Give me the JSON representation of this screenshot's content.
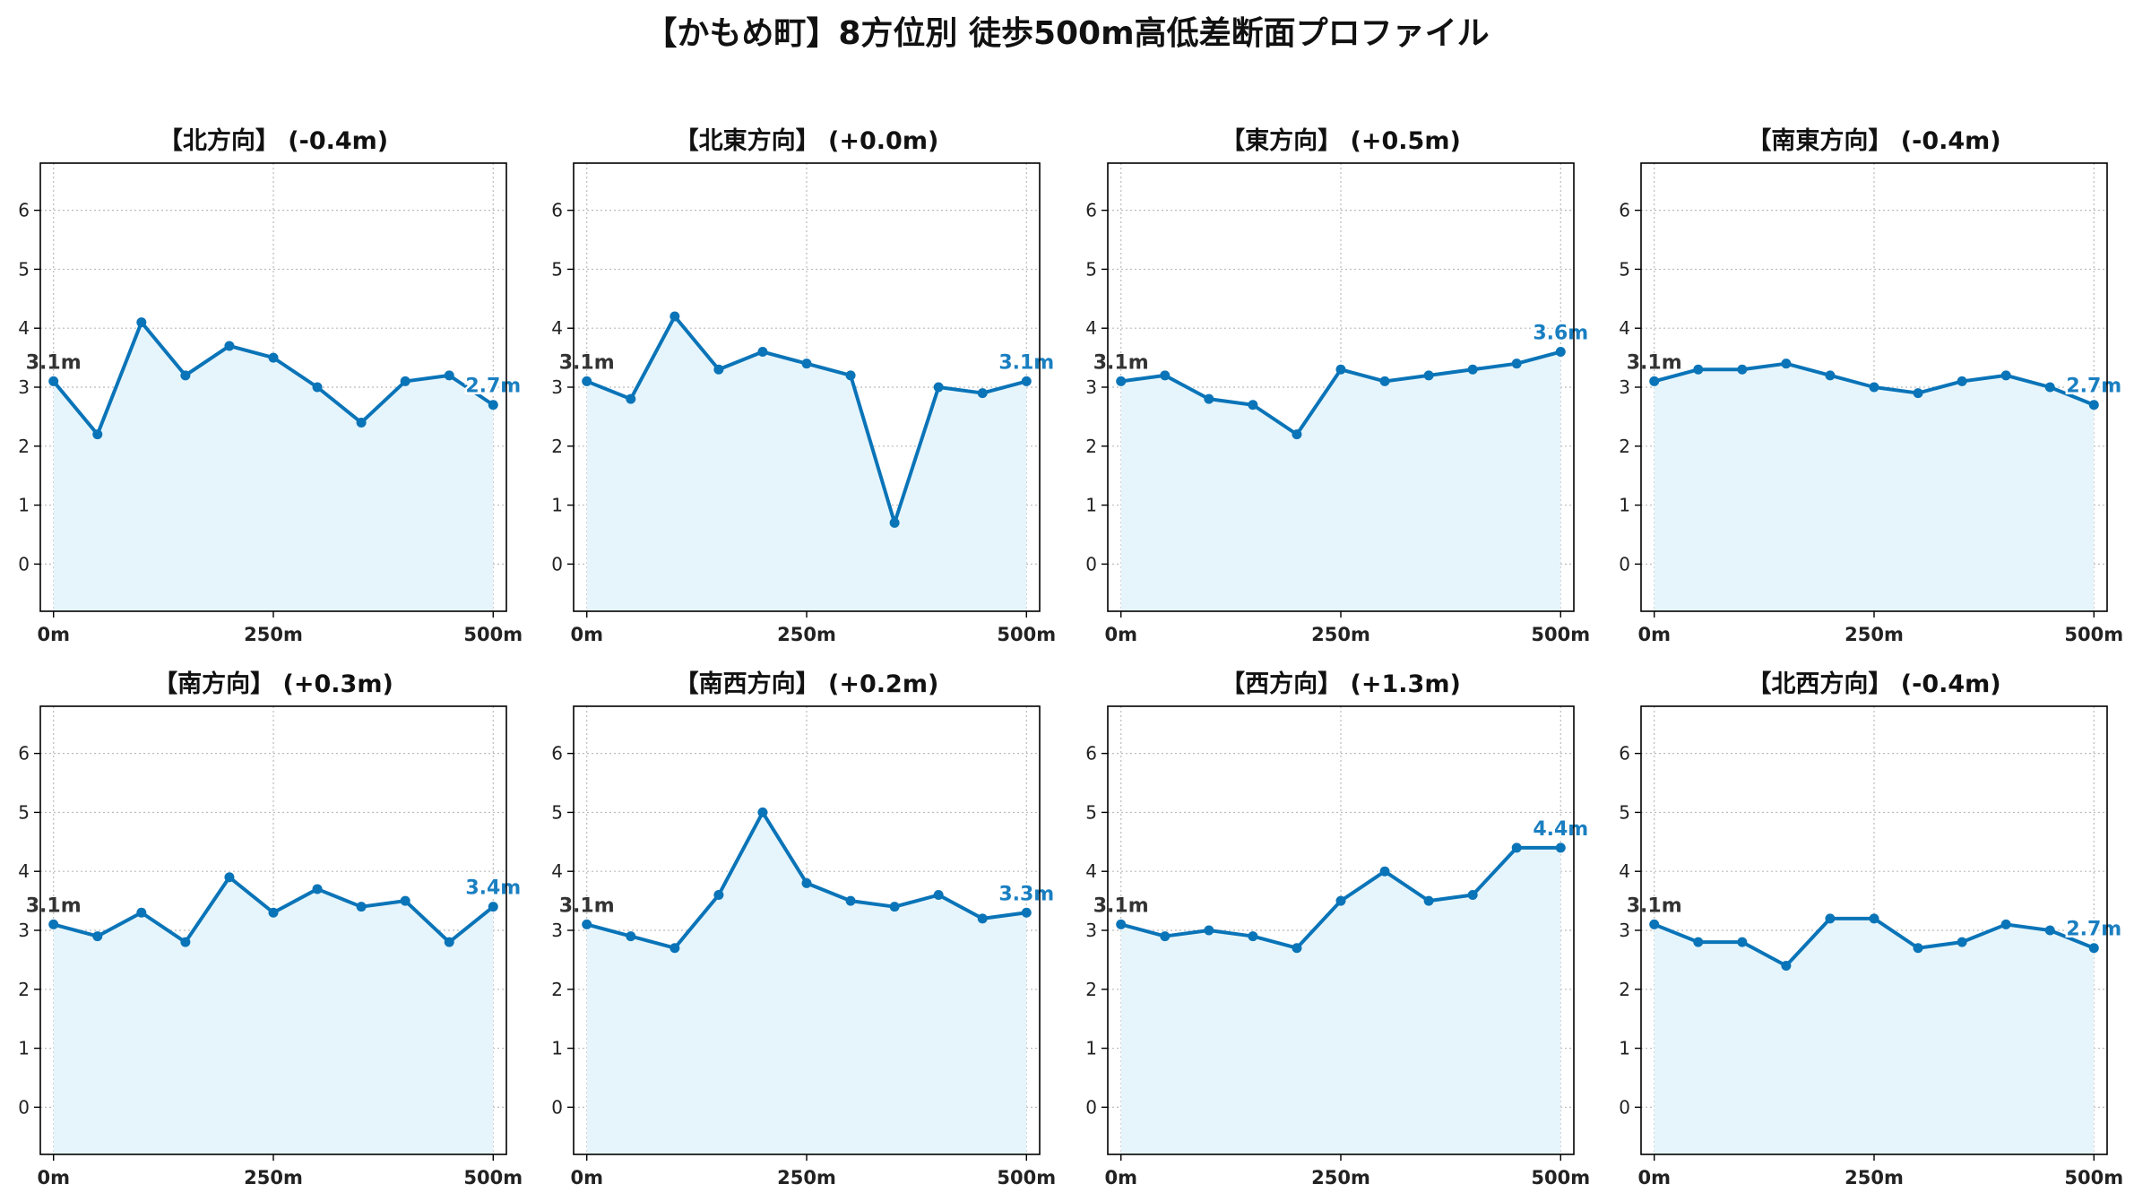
{
  "title": "【かもめ町】8方位別 徒歩500m高低差断面プロファイル",
  "colors": {
    "line": "#0a74b8",
    "fill": "#e6f5fb",
    "start_label": "#333333",
    "end_label": "#1a7fc1",
    "grid": "#bbbbbb"
  },
  "chart_data": [
    {
      "type": "area",
      "title": "【北方向】 (-0.4m)",
      "x": [
        0,
        50,
        100,
        150,
        200,
        250,
        300,
        350,
        400,
        450,
        500
      ],
      "values": [
        3.1,
        2.2,
        4.1,
        3.2,
        3.7,
        3.5,
        3.0,
        2.4,
        3.1,
        3.2,
        2.7
      ],
      "xticks": [
        "0m",
        "250m",
        "500m"
      ],
      "xtick_values": [
        0,
        250,
        500
      ],
      "yticks": [
        "0",
        "1",
        "2",
        "3",
        "4",
        "5",
        "6"
      ],
      "ylim": [
        -0.8,
        6.8
      ],
      "xlim": [
        -15,
        515
      ],
      "start_label": "3.1m",
      "end_label": "2.7m",
      "grid": true
    },
    {
      "type": "area",
      "title": "【北東方向】 (+0.0m)",
      "x": [
        0,
        50,
        100,
        150,
        200,
        250,
        300,
        350,
        400,
        450,
        500
      ],
      "values": [
        3.1,
        2.8,
        4.2,
        3.3,
        3.6,
        3.4,
        3.2,
        0.7,
        3.0,
        2.9,
        3.1
      ],
      "xticks": [
        "0m",
        "250m",
        "500m"
      ],
      "xtick_values": [
        0,
        250,
        500
      ],
      "yticks": [
        "0",
        "1",
        "2",
        "3",
        "4",
        "5",
        "6"
      ],
      "ylim": [
        -0.8,
        6.8
      ],
      "xlim": [
        -15,
        515
      ],
      "start_label": "3.1m",
      "end_label": "3.1m",
      "grid": true
    },
    {
      "type": "area",
      "title": "【東方向】 (+0.5m)",
      "x": [
        0,
        50,
        100,
        150,
        200,
        250,
        300,
        350,
        400,
        450,
        500
      ],
      "values": [
        3.1,
        3.2,
        2.8,
        2.7,
        2.2,
        3.3,
        3.1,
        3.2,
        3.3,
        3.4,
        3.6
      ],
      "xticks": [
        "0m",
        "250m",
        "500m"
      ],
      "xtick_values": [
        0,
        250,
        500
      ],
      "yticks": [
        "0",
        "1",
        "2",
        "3",
        "4",
        "5",
        "6"
      ],
      "ylim": [
        -0.8,
        6.8
      ],
      "xlim": [
        -15,
        515
      ],
      "start_label": "3.1m",
      "end_label": "3.6m",
      "grid": true
    },
    {
      "type": "area",
      "title": "【南東方向】 (-0.4m)",
      "x": [
        0,
        50,
        100,
        150,
        200,
        250,
        300,
        350,
        400,
        450,
        500
      ],
      "values": [
        3.1,
        3.3,
        3.3,
        3.4,
        3.2,
        3.0,
        2.9,
        3.1,
        3.2,
        3.0,
        2.7
      ],
      "xticks": [
        "0m",
        "250m",
        "500m"
      ],
      "xtick_values": [
        0,
        250,
        500
      ],
      "yticks": [
        "0",
        "1",
        "2",
        "3",
        "4",
        "5",
        "6"
      ],
      "ylim": [
        -0.8,
        6.8
      ],
      "xlim": [
        -15,
        515
      ],
      "start_label": "3.1m",
      "end_label": "2.7m",
      "grid": true
    },
    {
      "type": "area",
      "title": "【南方向】 (+0.3m)",
      "x": [
        0,
        50,
        100,
        150,
        200,
        250,
        300,
        350,
        400,
        450,
        500
      ],
      "values": [
        3.1,
        2.9,
        3.3,
        2.8,
        3.9,
        3.3,
        3.7,
        3.4,
        3.5,
        2.8,
        3.4
      ],
      "xticks": [
        "0m",
        "250m",
        "500m"
      ],
      "xtick_values": [
        0,
        250,
        500
      ],
      "yticks": [
        "0",
        "1",
        "2",
        "3",
        "4",
        "5",
        "6"
      ],
      "ylim": [
        -0.8,
        6.8
      ],
      "xlim": [
        -15,
        515
      ],
      "start_label": "3.1m",
      "end_label": "3.4m",
      "grid": true
    },
    {
      "type": "area",
      "title": "【南西方向】 (+0.2m)",
      "x": [
        0,
        50,
        100,
        150,
        200,
        250,
        300,
        350,
        400,
        450,
        500
      ],
      "values": [
        3.1,
        2.9,
        2.7,
        3.6,
        5.0,
        3.8,
        3.5,
        3.4,
        3.6,
        3.2,
        3.3
      ],
      "xticks": [
        "0m",
        "250m",
        "500m"
      ],
      "xtick_values": [
        0,
        250,
        500
      ],
      "yticks": [
        "0",
        "1",
        "2",
        "3",
        "4",
        "5",
        "6"
      ],
      "ylim": [
        -0.8,
        6.8
      ],
      "xlim": [
        -15,
        515
      ],
      "start_label": "3.1m",
      "end_label": "3.3m",
      "grid": true
    },
    {
      "type": "area",
      "title": "【西方向】 (+1.3m)",
      "x": [
        0,
        50,
        100,
        150,
        200,
        250,
        300,
        350,
        400,
        450,
        500
      ],
      "values": [
        3.1,
        2.9,
        3.0,
        2.9,
        2.7,
        3.5,
        4.0,
        3.5,
        3.6,
        4.4,
        4.4
      ],
      "xticks": [
        "0m",
        "250m",
        "500m"
      ],
      "xtick_values": [
        0,
        250,
        500
      ],
      "yticks": [
        "0",
        "1",
        "2",
        "3",
        "4",
        "5",
        "6"
      ],
      "ylim": [
        -0.8,
        6.8
      ],
      "xlim": [
        -15,
        515
      ],
      "start_label": "3.1m",
      "end_label": "4.4m",
      "grid": true
    },
    {
      "type": "area",
      "title": "【北西方向】 (-0.4m)",
      "x": [
        0,
        50,
        100,
        150,
        200,
        250,
        300,
        350,
        400,
        450,
        500
      ],
      "values": [
        3.1,
        2.8,
        2.8,
        2.4,
        3.2,
        3.2,
        2.7,
        2.8,
        3.1,
        3.0,
        2.7
      ],
      "xticks": [
        "0m",
        "250m",
        "500m"
      ],
      "xtick_values": [
        0,
        250,
        500
      ],
      "yticks": [
        "0",
        "1",
        "2",
        "3",
        "4",
        "5",
        "6"
      ],
      "ylim": [
        -0.8,
        6.8
      ],
      "xlim": [
        -15,
        515
      ],
      "start_label": "3.1m",
      "end_label": "2.7m",
      "grid": true
    }
  ]
}
